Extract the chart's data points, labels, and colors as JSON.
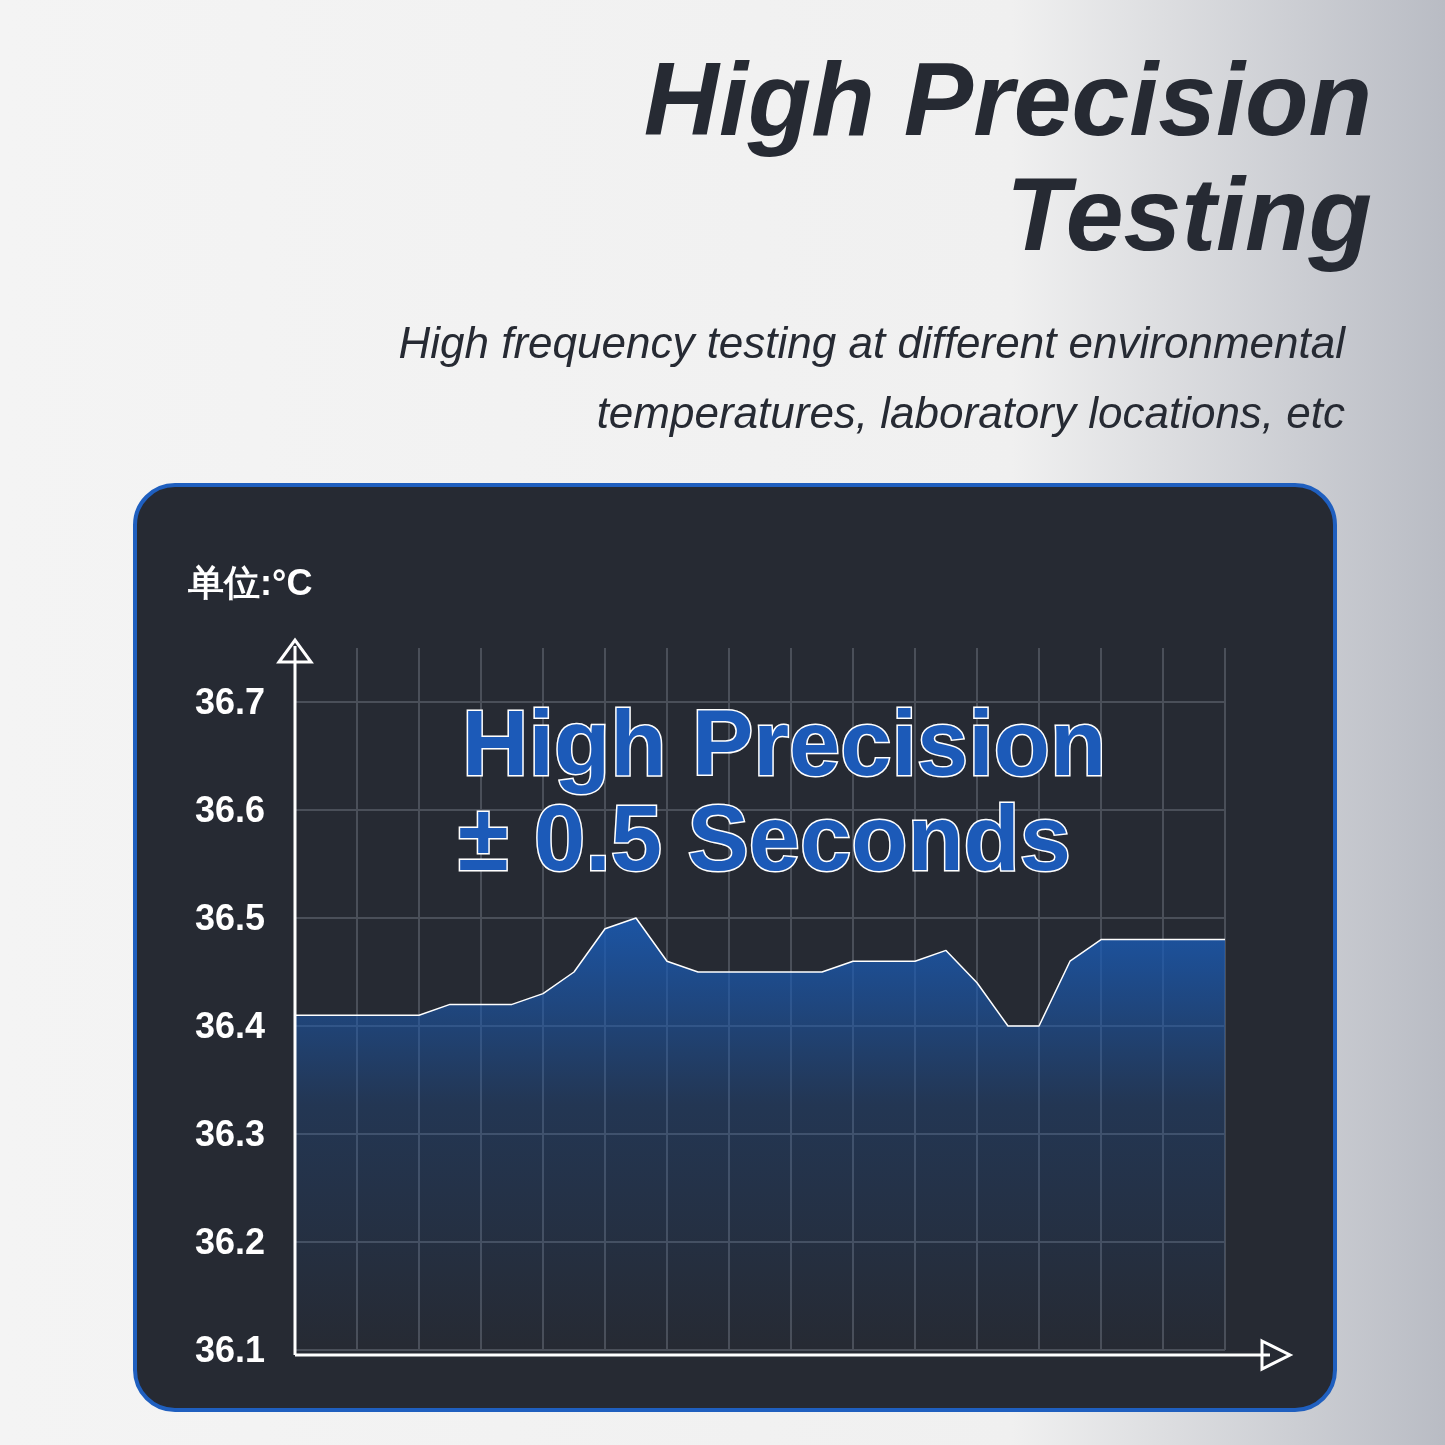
{
  "chart_data": {
    "type": "area",
    "title": "High Precision Testing",
    "subtitle": "High frequency testing at different environmental temperatures, laboratory locations, etc",
    "ylabel": "单位:°C",
    "annotations": [
      "High Precision",
      "± 0.5 Seconds"
    ],
    "categories": [
      null,
      null,
      null,
      null,
      null,
      null,
      null,
      null,
      null,
      null,
      null,
      null,
      null,
      null,
      null,
      null,
      null,
      null,
      null,
      null,
      null,
      null,
      null,
      null,
      null,
      null,
      null,
      null,
      null,
      null,
      null
    ],
    "series": [
      {
        "color": "#1a5bb5",
        "values": [
          36.41,
          36.41,
          36.41,
          36.41,
          36.41,
          36.42,
          36.42,
          36.42,
          36.43,
          36.45,
          36.49,
          36.5,
          36.46,
          36.45,
          36.45,
          36.45,
          36.45,
          36.45,
          36.46,
          36.46,
          36.46,
          36.47,
          36.44,
          36.4,
          36.4,
          36.46,
          36.48,
          36.48,
          36.48,
          36.48,
          36.48
        ]
      }
    ],
    "ylim": [
      36.1,
      36.75
    ],
    "yticks": [
      36.1,
      36.2,
      36.3,
      36.4,
      36.5,
      36.6,
      36.7
    ],
    "grid": true
  }
}
